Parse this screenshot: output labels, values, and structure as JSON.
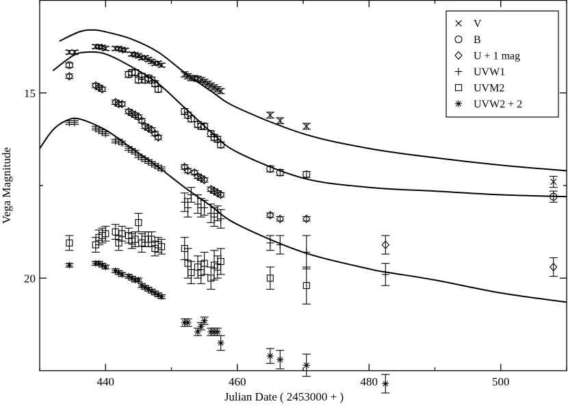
{
  "chart_data": {
    "type": "scatter",
    "xlabel": "Julian Date ( 2453000 + )",
    "ylabel": "Vega Magnitude",
    "xlim": [
      430,
      510
    ],
    "ylim": [
      22.5,
      12.5
    ],
    "y_inverted": true,
    "x_ticks": [
      440,
      460,
      480,
      500
    ],
    "x_tick_labels": [
      "440",
      "460",
      "480",
      "500"
    ],
    "y_ticks": [
      15,
      20
    ],
    "y_tick_labels": [
      "15",
      "20"
    ],
    "legend_position": "top-right",
    "series": [
      {
        "name": "V",
        "marker": "x",
        "x": [
          434.5,
          435.3,
          438.5,
          439.0,
          439.5,
          440.0,
          441.5,
          442.0,
          442.5,
          443.0,
          444.0,
          444.5,
          445.0,
          445.5,
          446.0,
          446.5,
          447.0,
          447.5,
          448.0,
          448.5,
          452.0,
          452.5,
          453.0,
          453.5,
          454.0,
          454.5,
          455.0,
          455.5,
          456.0,
          456.5,
          457.0,
          457.5,
          465.0,
          466.5,
          470.5,
          508.0
        ],
        "y": [
          13.9,
          13.9,
          13.75,
          13.75,
          13.77,
          13.8,
          13.8,
          13.8,
          13.83,
          13.85,
          13.95,
          13.97,
          14.0,
          14.05,
          14.05,
          14.1,
          14.15,
          14.2,
          14.2,
          14.25,
          14.5,
          14.55,
          14.6,
          14.6,
          14.62,
          14.65,
          14.7,
          14.75,
          14.8,
          14.85,
          14.9,
          14.95,
          15.6,
          15.75,
          15.9,
          17.4
        ],
        "err": [
          0.05,
          0.05,
          0.05,
          0.05,
          0.05,
          0.05,
          0.05,
          0.05,
          0.05,
          0.05,
          0.05,
          0.05,
          0.05,
          0.05,
          0.05,
          0.05,
          0.05,
          0.05,
          0.05,
          0.05,
          0.07,
          0.07,
          0.07,
          0.07,
          0.07,
          0.07,
          0.07,
          0.07,
          0.07,
          0.07,
          0.07,
          0.07,
          0.08,
          0.08,
          0.08,
          0.15
        ]
      },
      {
        "name": "B",
        "marker": "circle",
        "x": [
          434.5,
          443.5,
          444.0,
          444.5,
          445.0,
          445.5,
          446.0,
          446.5,
          447.0,
          447.5,
          448.0,
          452.0,
          452.5,
          453.0,
          454.0,
          454.5,
          455.0,
          456.0,
          456.5,
          457.0,
          457.5,
          465.0,
          466.5,
          470.5,
          508.0
        ],
        "y": [
          14.25,
          14.5,
          14.45,
          14.45,
          14.65,
          14.55,
          14.65,
          14.6,
          14.65,
          14.75,
          14.9,
          15.5,
          15.6,
          15.7,
          15.85,
          15.9,
          15.9,
          16.1,
          16.2,
          16.25,
          16.4,
          17.05,
          17.15,
          17.2,
          17.8
        ],
        "err": [
          0.06,
          0.08,
          0.08,
          0.08,
          0.08,
          0.08,
          0.08,
          0.08,
          0.08,
          0.08,
          0.08,
          0.08,
          0.08,
          0.08,
          0.08,
          0.08,
          0.08,
          0.08,
          0.08,
          0.08,
          0.08,
          0.08,
          0.08,
          0.08,
          0.15
        ]
      },
      {
        "name": "U + 1 mag",
        "marker": "diamond",
        "x": [
          434.5,
          438.5,
          439.0,
          439.5,
          441.5,
          442.0,
          442.5,
          443.5,
          444.0,
          444.5,
          445.0,
          445.5,
          446.0,
          446.5,
          447.0,
          447.5,
          448.0,
          452.0,
          452.5,
          453.5,
          454.0,
          454.5,
          455.0,
          456.0,
          456.5,
          457.0,
          457.5,
          465.0,
          466.5,
          470.5,
          482.5,
          508.0
        ],
        "y": [
          14.55,
          14.8,
          14.85,
          14.9,
          15.25,
          15.3,
          15.3,
          15.5,
          15.55,
          15.6,
          15.65,
          15.75,
          15.9,
          15.95,
          16.0,
          16.1,
          16.2,
          17.0,
          17.1,
          17.15,
          17.25,
          17.3,
          17.35,
          17.6,
          17.65,
          17.7,
          17.75,
          18.3,
          18.4,
          18.4,
          19.1,
          19.7
        ],
        "err": [
          0.06,
          0.06,
          0.06,
          0.06,
          0.06,
          0.06,
          0.06,
          0.06,
          0.06,
          0.06,
          0.06,
          0.06,
          0.06,
          0.06,
          0.06,
          0.06,
          0.06,
          0.06,
          0.06,
          0.06,
          0.06,
          0.06,
          0.06,
          0.06,
          0.06,
          0.06,
          0.06,
          0.06,
          0.06,
          0.06,
          0.25,
          0.25
        ]
      },
      {
        "name": "UVW1",
        "marker": "plus",
        "x": [
          434.5,
          435.3,
          438.5,
          439.0,
          439.5,
          440.0,
          441.5,
          442.0,
          442.5,
          443.5,
          444.0,
          444.5,
          445.0,
          445.5,
          446.0,
          446.5,
          447.0,
          447.5,
          448.0,
          448.5,
          452.0,
          452.5,
          453.0,
          454.0,
          454.5,
          455.0,
          456.0,
          456.5,
          457.0,
          457.5,
          465.0,
          466.5,
          470.5,
          482.5
        ],
        "y": [
          15.8,
          15.8,
          15.95,
          16.0,
          16.05,
          16.1,
          16.3,
          16.3,
          16.35,
          16.5,
          16.55,
          16.6,
          16.7,
          16.75,
          16.8,
          16.85,
          16.9,
          16.95,
          17.0,
          17.05,
          17.95,
          18.1,
          17.75,
          18.0,
          18.1,
          18.1,
          18.25,
          18.35,
          18.25,
          18.4,
          19.05,
          19.1,
          19.3,
          19.9
        ],
        "err": [
          0.05,
          0.05,
          0.05,
          0.05,
          0.05,
          0.05,
          0.05,
          0.05,
          0.05,
          0.05,
          0.05,
          0.05,
          0.05,
          0.05,
          0.05,
          0.05,
          0.05,
          0.05,
          0.05,
          0.05,
          0.25,
          0.25,
          0.2,
          0.25,
          0.25,
          0.2,
          0.25,
          0.25,
          0.2,
          0.25,
          0.2,
          0.25,
          0.45,
          0.3
        ]
      },
      {
        "name": "UVM2",
        "marker": "square",
        "x": [
          434.5,
          438.5,
          439.0,
          439.5,
          440.0,
          441.5,
          442.0,
          442.5,
          443.5,
          444.0,
          444.5,
          445.0,
          445.5,
          446.0,
          446.5,
          447.0,
          447.5,
          448.0,
          448.5,
          452.0,
          452.5,
          453.0,
          454.0,
          454.5,
          455.0,
          456.0,
          456.5,
          457.0,
          457.5,
          465.0,
          470.5
        ],
        "y": [
          19.05,
          19.1,
          18.9,
          18.85,
          18.8,
          18.75,
          19.05,
          18.8,
          18.85,
          19.0,
          18.95,
          18.5,
          19.05,
          18.95,
          18.95,
          18.95,
          19.2,
          19.1,
          19.15,
          19.2,
          19.6,
          19.85,
          19.7,
          19.85,
          19.6,
          20.0,
          19.65,
          19.7,
          19.55,
          20.0,
          20.2
        ],
        "err": [
          0.2,
          0.2,
          0.2,
          0.2,
          0.2,
          0.2,
          0.2,
          0.2,
          0.2,
          0.2,
          0.2,
          0.25,
          0.25,
          0.2,
          0.2,
          0.2,
          0.2,
          0.2,
          0.2,
          0.3,
          0.4,
          0.3,
          0.3,
          0.3,
          0.3,
          0.3,
          0.4,
          0.3,
          0.35,
          0.3,
          0.5
        ]
      },
      {
        "name": "UVW2 + 2",
        "marker": "star",
        "x": [
          434.5,
          438.5,
          439.0,
          439.5,
          440.0,
          441.5,
          442.0,
          442.5,
          443.5,
          444.0,
          444.5,
          445.0,
          445.5,
          446.0,
          446.5,
          447.0,
          447.5,
          448.0,
          448.5,
          452.0,
          452.5,
          454.0,
          454.5,
          455.0,
          456.0,
          456.5,
          457.0,
          457.5,
          465.0,
          466.5,
          470.5,
          482.5
        ],
        "y": [
          19.65,
          19.6,
          19.6,
          19.65,
          19.7,
          19.8,
          19.85,
          19.9,
          19.95,
          20.0,
          20.05,
          20.05,
          20.2,
          20.25,
          20.3,
          20.35,
          20.4,
          20.45,
          20.5,
          21.2,
          21.2,
          21.45,
          21.3,
          21.15,
          21.45,
          21.45,
          21.45,
          21.75,
          22.1,
          22.2,
          22.35,
          22.85
        ],
        "err": [
          0.05,
          0.05,
          0.05,
          0.05,
          0.05,
          0.05,
          0.05,
          0.05,
          0.05,
          0.05,
          0.05,
          0.05,
          0.05,
          0.05,
          0.05,
          0.05,
          0.05,
          0.05,
          0.05,
          0.1,
          0.1,
          0.1,
          0.1,
          0.1,
          0.1,
          0.1,
          0.1,
          0.2,
          0.2,
          0.25,
          0.3,
          0.25
        ]
      }
    ],
    "model_curves": [
      {
        "x": [
          433.0,
          436.0,
          438.0,
          440.0,
          444.0,
          448.0,
          452.0,
          456.0,
          460.0,
          470.0,
          480.0,
          490.0,
          500.0,
          510.0
        ],
        "y": [
          13.6,
          13.35,
          13.3,
          13.35,
          13.55,
          13.9,
          14.45,
          14.95,
          15.4,
          16.1,
          16.5,
          16.75,
          16.95,
          17.1
        ]
      },
      {
        "x": [
          432.0,
          435.0,
          437.0,
          440.0,
          444.0,
          448.0,
          452.0,
          456.0,
          460.0,
          470.0,
          480.0,
          490.0,
          500.0,
          510.0
        ],
        "y": [
          14.4,
          14.0,
          13.9,
          13.95,
          14.3,
          14.75,
          15.4,
          16.05,
          16.6,
          17.3,
          17.55,
          17.65,
          17.75,
          17.8
        ]
      },
      {
        "x": [
          430.0,
          432.0,
          434.0,
          436.0,
          440.0,
          444.0,
          448.0,
          452.0,
          456.0,
          460.0,
          470.0,
          480.0,
          483.0,
          490.0,
          500.0,
          510.0
        ],
        "y": [
          16.5,
          16.0,
          15.75,
          15.7,
          16.0,
          16.5,
          17.0,
          17.55,
          18.05,
          18.55,
          19.3,
          19.75,
          19.85,
          20.05,
          20.4,
          20.65
        ]
      }
    ]
  }
}
